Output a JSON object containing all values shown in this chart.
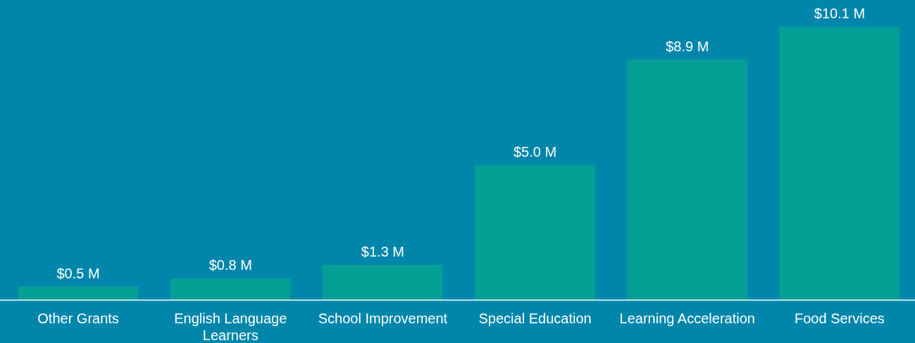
{
  "chart_data": {
    "type": "bar",
    "categories": [
      "Other Grants",
      "English Language Learners",
      "School Improvement",
      "Special Education",
      "Learning Acceleration",
      "Food Services"
    ],
    "values": [
      0.5,
      0.8,
      1.3,
      5.0,
      8.9,
      10.1
    ],
    "value_labels": [
      "$0.5 M",
      "$0.8 M",
      "$1.3 M",
      "$5.0 M",
      "$8.9 M",
      "$10.1 M"
    ],
    "color": "#05a095",
    "ylim": [
      0,
      11.1
    ]
  }
}
